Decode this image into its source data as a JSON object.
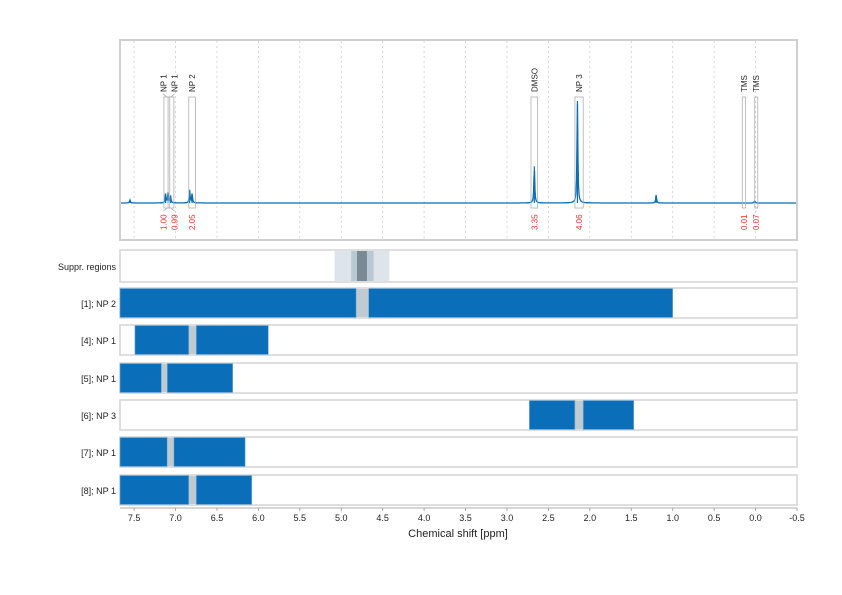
{
  "chart_data": {
    "type": "line",
    "xlabel": "Chemical shift [ppm]",
    "xlim": [
      7.67,
      -0.5
    ],
    "x_reversed": true,
    "xticks": [
      "7.5",
      "7.0",
      "6.5",
      "6.0",
      "5.5",
      "5.0",
      "4.5",
      "4.0",
      "3.5",
      "3.0",
      "2.5",
      "2.0",
      "1.5",
      "1.0",
      "0.5",
      "0.0",
      "-0.5"
    ],
    "grid": true,
    "colors": {
      "spectrum": "#0a6db5",
      "integral_text": "#ff2a2a",
      "box": "#b0b0b0",
      "bar": "#0a6fb8",
      "gap": "#bfcbd1",
      "suppr_light": "#dde4ea",
      "suppr_mid": "#b9c9d1",
      "suppr_dark": "#7a8a95"
    },
    "spectrum_peaks": [
      {
        "ppm": 7.55,
        "intensity": 3
      },
      {
        "ppm": 7.12,
        "intensity": 9
      },
      {
        "ppm": 7.09,
        "intensity": 10
      },
      {
        "ppm": 7.06,
        "intensity": 7
      },
      {
        "ppm": 6.83,
        "intensity": 13
      },
      {
        "ppm": 6.8,
        "intensity": 9
      },
      {
        "ppm": 2.67,
        "intensity": 36
      },
      {
        "ppm": 2.15,
        "intensity": 100
      },
      {
        "ppm": 1.2,
        "intensity": 8
      },
      {
        "ppm": 0.01,
        "intensity": 2
      }
    ],
    "integrals": [
      {
        "label": "NP 1",
        "from": 7.14,
        "to": 7.07,
        "value": "1.00"
      },
      {
        "label": "NP 1",
        "from": 7.09,
        "to": 7.02,
        "value": "0.99"
      },
      {
        "label": "NP 2",
        "from": 6.84,
        "to": 6.76,
        "value": "2.05"
      },
      {
        "label": "DMSO",
        "from": 2.71,
        "to": 2.63,
        "value": "3.35"
      },
      {
        "label": "NP 3",
        "from": 2.18,
        "to": 2.08,
        "value": "4.06"
      },
      {
        "label": "TMS",
        "from": 0.16,
        "to": 0.12,
        "value": "0.01"
      },
      {
        "label": "TMS",
        "from": 0.01,
        "to": -0.02,
        "value": "0.07"
      }
    ],
    "suppression": {
      "label": "Suppr. regions",
      "regions": [
        {
          "from": 5.08,
          "to": 4.42,
          "level": "light"
        },
        {
          "from": 4.88,
          "to": 4.61,
          "level": "mid"
        },
        {
          "from": 4.81,
          "to": 4.69,
          "level": "dark"
        }
      ]
    },
    "rows": [
      {
        "label": "[1]; NP 2",
        "segments": [
          [
            7.67,
            4.82
          ],
          [
            4.67,
            1.0
          ]
        ],
        "gap": [
          4.82,
          4.67
        ]
      },
      {
        "label": "[4]; NP 1",
        "segments": [
          [
            7.49,
            6.84
          ],
          [
            6.75,
            5.88
          ]
        ],
        "gap": [
          6.84,
          6.75
        ]
      },
      {
        "label": "[5]; NP 1",
        "segments": [
          [
            7.67,
            7.17
          ],
          [
            7.1,
            6.31
          ]
        ],
        "gap": [
          7.17,
          7.1
        ]
      },
      {
        "label": "[6]; NP 3",
        "segments": [
          [
            2.73,
            2.18
          ],
          [
            2.08,
            1.47
          ]
        ],
        "gap": [
          2.18,
          2.08
        ]
      },
      {
        "label": "[7]; NP 1",
        "segments": [
          [
            7.67,
            7.1
          ],
          [
            7.02,
            6.16
          ]
        ],
        "gap": [
          7.1,
          7.02
        ]
      },
      {
        "label": "[8]; NP 1",
        "segments": [
          [
            7.67,
            6.84
          ],
          [
            6.75,
            6.08
          ]
        ],
        "gap": [
          6.84,
          6.75
        ]
      }
    ]
  }
}
